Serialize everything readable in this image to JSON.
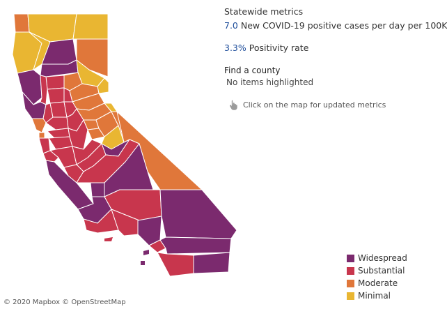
{
  "metrics": {
    "title": "Statewide metrics",
    "cases_value": "7.0",
    "cases_label": "New COVID-19 positive cases per day per 100K",
    "rate_value": "3.3%",
    "rate_label": "Positivity rate"
  },
  "find_county": {
    "title": "Find a county",
    "status": "No items highlighted"
  },
  "hint": {
    "text": "Click on the map for updated metrics",
    "icon": "pointer-hand-icon"
  },
  "legend": [
    {
      "label": "Widespread",
      "color": "#7b2a6e"
    },
    {
      "label": "Substantial",
      "color": "#c8364d"
    },
    {
      "label": "Moderate",
      "color": "#e0773a"
    },
    {
      "label": "Minimal",
      "color": "#e9b632"
    }
  ],
  "attribution": "© 2020 Mapbox © OpenStreetMap"
}
